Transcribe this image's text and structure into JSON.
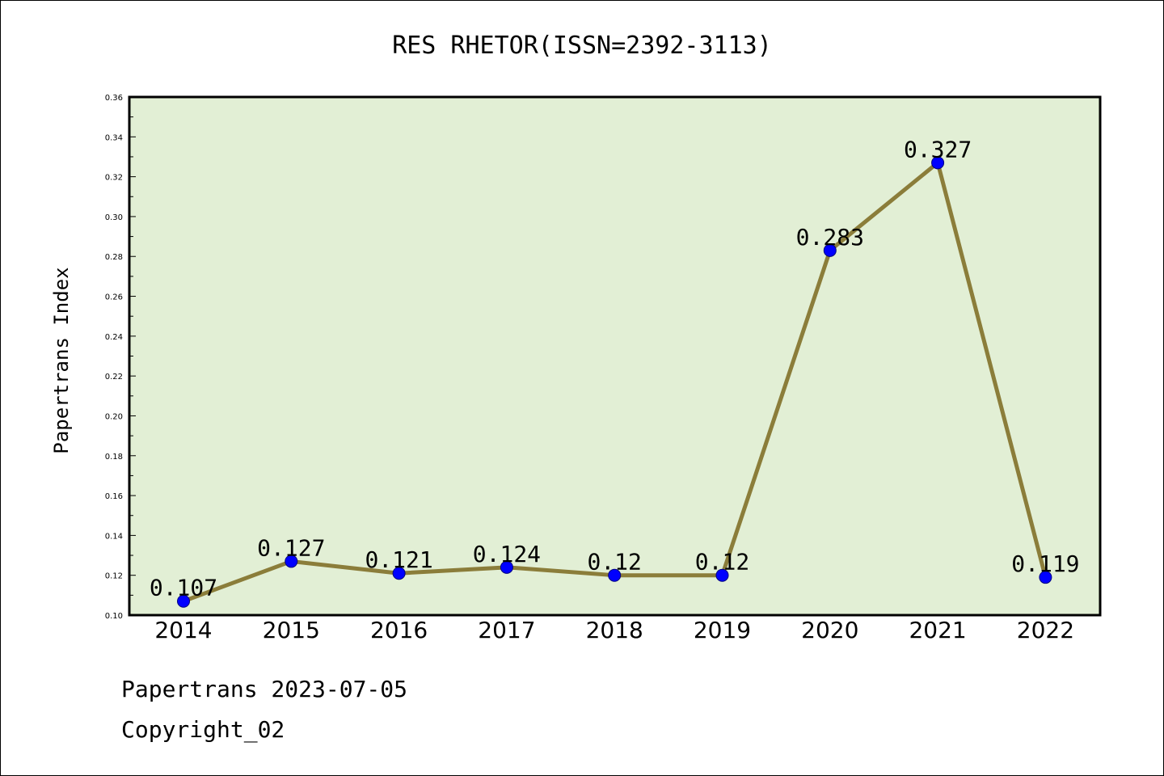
{
  "chart_data": {
    "type": "line",
    "title": "RES RHETOR(ISSN=2392-3113)",
    "xlabel": "",
    "ylabel": "Papertrans Index",
    "categories": [
      "2014",
      "2015",
      "2016",
      "2017",
      "2018",
      "2019",
      "2020",
      "2021",
      "2022"
    ],
    "series": [
      {
        "values": [
          0.107,
          0.127,
          0.121,
          0.124,
          0.12,
          0.12,
          0.283,
          0.327,
          0.119
        ]
      }
    ],
    "data_labels": [
      "0.107",
      "0.127",
      "0.121",
      "0.124",
      "0.12",
      "0.12",
      "0.283",
      "0.327",
      "0.119"
    ],
    "ylim": [
      0.1,
      0.36
    ],
    "yticks": [
      "0.10",
      "0.12",
      "0.14",
      "0.16",
      "0.18",
      "0.20",
      "0.22",
      "0.24",
      "0.26",
      "0.28",
      "0.30",
      "0.32",
      "0.34",
      "0.36"
    ],
    "grid": false,
    "legend": "none",
    "colors": {
      "plot_background": "#e2efd5",
      "line": "#8b7d3a",
      "marker": "#0000ff",
      "marker_edge": "#000080"
    }
  },
  "footer": {
    "date_line": "Papertrans 2023-07-05",
    "copyright_line": "Copyright_02"
  }
}
